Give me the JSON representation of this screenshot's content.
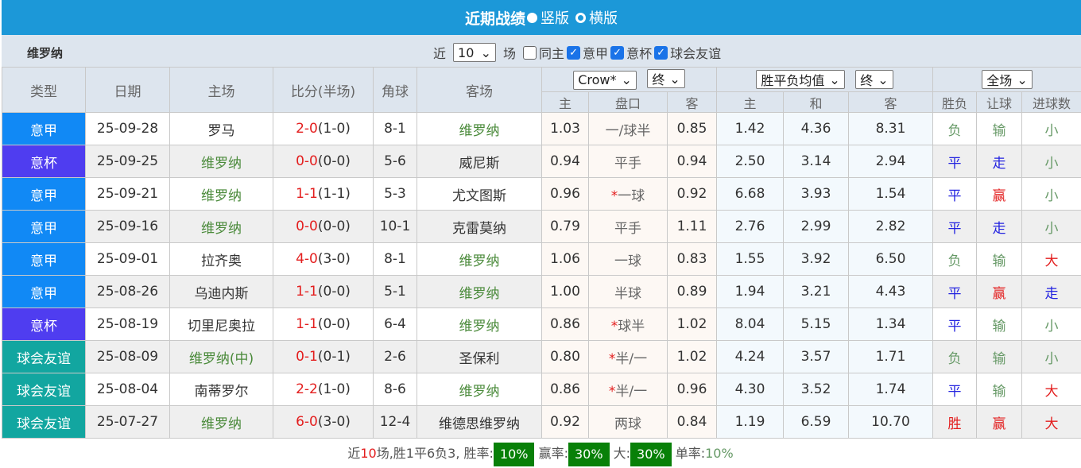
{
  "title": {
    "text": "近期战绩",
    "opt1": "竖版",
    "opt2": "横版"
  },
  "subbar": {
    "team": "维罗纳",
    "near": "近",
    "count": "10",
    "games": "场",
    "same_home": "同主",
    "leagues": [
      "意甲",
      "意杯",
      "球会友谊"
    ]
  },
  "headers": {
    "type": "类型",
    "date": "日期",
    "home": "主场",
    "score": "比分(半场)",
    "corner": "角球",
    "away": "客场",
    "company": "Crow*",
    "final1": "终",
    "eu": "胜平负均值",
    "final2": "终",
    "scope": "全场",
    "sub": [
      "主",
      "盘口",
      "客",
      "主",
      "和",
      "客",
      "胜负",
      "让球",
      "进球数"
    ]
  },
  "colors": {
    "意甲": "#1189f5",
    "意杯": "#4f3df0",
    "球会友谊": "#12a6a0",
    "header": "#1c98d8"
  },
  "rows": [
    {
      "type": "意甲",
      "date": "25-09-28",
      "home": "罗马",
      "home_team": false,
      "ft": "2-0",
      "ht": "(1-0)",
      "corner": "8-1",
      "away": "维罗纳",
      "away_team": true,
      "o1": "1.03",
      "hc": "一/球半",
      "star": false,
      "o2": "0.85",
      "e1": "1.42",
      "ex": "4.36",
      "e2": "8.31",
      "r": "负",
      "h": "输",
      "g": "小"
    },
    {
      "type": "意杯",
      "date": "25-09-25",
      "home": "维罗纳",
      "home_team": true,
      "ft": "0-0",
      "ht": "(0-0)",
      "corner": "5-6",
      "away": "威尼斯",
      "away_team": false,
      "o1": "0.94",
      "hc": "平手",
      "star": false,
      "o2": "0.94",
      "e1": "2.50",
      "ex": "3.14",
      "e2": "2.94",
      "r": "平",
      "h": "走",
      "g": "小"
    },
    {
      "type": "意甲",
      "date": "25-09-21",
      "home": "维罗纳",
      "home_team": true,
      "ft": "1-1",
      "ht": "(1-1)",
      "corner": "5-3",
      "away": "尤文图斯",
      "away_team": false,
      "o1": "0.96",
      "hc": "一球",
      "star": true,
      "o2": "0.92",
      "e1": "6.68",
      "ex": "3.93",
      "e2": "1.54",
      "r": "平",
      "h": "赢",
      "g": "小"
    },
    {
      "type": "意甲",
      "date": "25-09-16",
      "home": "维罗纳",
      "home_team": true,
      "ft": "0-0",
      "ht": "(0-0)",
      "corner": "10-1",
      "away": "克雷莫纳",
      "away_team": false,
      "o1": "0.79",
      "hc": "平手",
      "star": false,
      "o2": "1.11",
      "e1": "2.76",
      "ex": "2.99",
      "e2": "2.82",
      "r": "平",
      "h": "走",
      "g": "小"
    },
    {
      "type": "意甲",
      "date": "25-09-01",
      "home": "拉齐奥",
      "home_team": false,
      "ft": "4-0",
      "ht": "(3-0)",
      "corner": "8-1",
      "away": "维罗纳",
      "away_team": true,
      "o1": "1.06",
      "hc": "一球",
      "star": false,
      "o2": "0.83",
      "e1": "1.55",
      "ex": "3.92",
      "e2": "6.50",
      "r": "负",
      "h": "输",
      "g": "大"
    },
    {
      "type": "意甲",
      "date": "25-08-26",
      "home": "乌迪内斯",
      "home_team": false,
      "ft": "1-1",
      "ht": "(0-0)",
      "corner": "5-1",
      "away": "维罗纳",
      "away_team": true,
      "o1": "1.00",
      "hc": "半球",
      "star": false,
      "o2": "0.89",
      "e1": "1.94",
      "ex": "3.21",
      "e2": "4.43",
      "r": "平",
      "h": "赢",
      "g": "走"
    },
    {
      "type": "意杯",
      "date": "25-08-19",
      "home": "切里尼奥拉",
      "home_team": false,
      "ft": "1-1",
      "ht": "(0-0)",
      "corner": "6-4",
      "away": "维罗纳",
      "away_team": true,
      "o1": "0.86",
      "hc": "球半",
      "star": true,
      "o2": "1.02",
      "e1": "8.04",
      "ex": "5.15",
      "e2": "1.34",
      "r": "平",
      "h": "输",
      "g": "小"
    },
    {
      "type": "球会友谊",
      "date": "25-08-09",
      "home": "维罗纳(中)",
      "home_team": true,
      "ft": "0-1",
      "ht": "(0-1)",
      "corner": "2-6",
      "away": "圣保利",
      "away_team": false,
      "o1": "0.80",
      "hc": "半/一",
      "star": true,
      "o2": "1.02",
      "e1": "4.24",
      "ex": "3.57",
      "e2": "1.71",
      "r": "负",
      "h": "输",
      "g": "小"
    },
    {
      "type": "球会友谊",
      "date": "25-08-04",
      "home": "南蒂罗尔",
      "home_team": false,
      "ft": "2-2",
      "ht": "(1-0)",
      "corner": "8-6",
      "away": "维罗纳",
      "away_team": true,
      "o1": "0.86",
      "hc": "半/一",
      "star": true,
      "o2": "0.96",
      "e1": "4.30",
      "ex": "3.52",
      "e2": "1.74",
      "r": "平",
      "h": "输",
      "g": "大"
    },
    {
      "type": "球会友谊",
      "date": "25-07-27",
      "home": "维罗纳",
      "home_team": true,
      "ft": "6-0",
      "ht": "(3-0)",
      "corner": "12-4",
      "away": "维德思维罗纳",
      "away_team": false,
      "o1": "0.92",
      "hc": "两球",
      "star": false,
      "o2": "0.84",
      "e1": "1.19",
      "ex": "6.59",
      "e2": "10.70",
      "r": "胜",
      "h": "赢",
      "g": "大"
    }
  ],
  "footer": {
    "p1": "近",
    "n": "10",
    "p2": "场,胜1平6负3, 胜率:",
    "win": "10%",
    "l2": "赢率:",
    "ying": "30%",
    "l3": "大:",
    "da": "30%",
    "l4": "单率:",
    "dan": "10%"
  }
}
